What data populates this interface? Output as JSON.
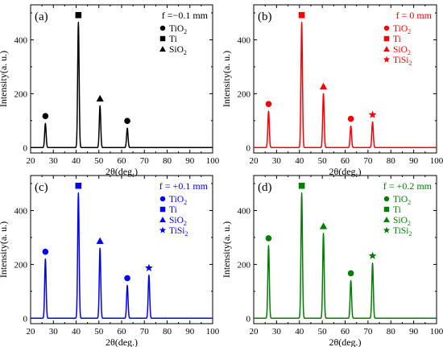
{
  "chart_data": [
    {
      "type": "line",
      "panel_label": "(a)",
      "annotation": "f =−0.1 mm",
      "color": "#000000",
      "xlabel": "2θ(deg.)",
      "ylabel": "Intensity(a. u.)",
      "xlim": [
        20,
        100
      ],
      "ylim": [
        -20,
        530
      ],
      "xticks": [
        "20",
        "30",
        "40",
        "50",
        "60",
        "70",
        "80",
        "90",
        "100"
      ],
      "yticks": [
        "0",
        "200",
        "400"
      ],
      "grid": false,
      "legend_position": "top-right",
      "legend": [
        {
          "marker": "circle",
          "label": "TiO",
          "sub": "2"
        },
        {
          "marker": "square",
          "label": "Ti",
          "sub": ""
        },
        {
          "marker": "triangle",
          "label": "SiO",
          "sub": "2"
        }
      ],
      "peaks": [
        {
          "x": 26.5,
          "y": 90,
          "marker": "circle"
        },
        {
          "x": 41.0,
          "y": 465,
          "marker": "square"
        },
        {
          "x": 50.5,
          "y": 155,
          "marker": "triangle"
        },
        {
          "x": 62.5,
          "y": 72,
          "marker": "circle"
        }
      ]
    },
    {
      "type": "line",
      "panel_label": "(b)",
      "annotation": "f = 0 mm",
      "color": "#ff0000",
      "xlabel": "2θ(deg.)",
      "ylabel": "Intensity(a. u.)",
      "xlim": [
        20,
        100
      ],
      "ylim": [
        -20,
        530
      ],
      "xticks": [
        "20",
        "30",
        "40",
        "50",
        "60",
        "70",
        "80",
        "90",
        "100"
      ],
      "yticks": [
        "0",
        "200",
        "400"
      ],
      "grid": false,
      "legend_position": "top-right",
      "legend": [
        {
          "marker": "circle",
          "label": "TiO",
          "sub": "2"
        },
        {
          "marker": "square",
          "label": "Ti",
          "sub": ""
        },
        {
          "marker": "triangle",
          "label": "SiO",
          "sub": "2"
        },
        {
          "marker": "star",
          "label": "TiSi",
          "sub": "2"
        }
      ],
      "peaks": [
        {
          "x": 26.5,
          "y": 135,
          "marker": "circle"
        },
        {
          "x": 41.0,
          "y": 465,
          "marker": "square"
        },
        {
          "x": 50.5,
          "y": 200,
          "marker": "triangle"
        },
        {
          "x": 62.5,
          "y": 80,
          "marker": "circle"
        },
        {
          "x": 72.0,
          "y": 95,
          "marker": "star"
        }
      ]
    },
    {
      "type": "line",
      "panel_label": "(c)",
      "annotation": "f = +0.1 mm",
      "color": "#0000ff",
      "xlabel": "2θ(deg.)",
      "ylabel": "Intensity(a. u.)",
      "xlim": [
        20,
        100
      ],
      "ylim": [
        -20,
        530
      ],
      "xticks": [
        "20",
        "30",
        "40",
        "50",
        "60",
        "70",
        "80",
        "90",
        "100"
      ],
      "yticks": [
        "0",
        "200",
        "400"
      ],
      "grid": false,
      "legend_position": "top-right",
      "legend": [
        {
          "marker": "circle",
          "label": "TiO",
          "sub": "2"
        },
        {
          "marker": "square",
          "label": "Ti",
          "sub": ""
        },
        {
          "marker": "triangle",
          "label": "SiO",
          "sub": "2"
        },
        {
          "marker": "star",
          "label": "TiSi",
          "sub": "2"
        }
      ],
      "peaks": [
        {
          "x": 26.5,
          "y": 220,
          "marker": "circle"
        },
        {
          "x": 41.0,
          "y": 465,
          "marker": "square"
        },
        {
          "x": 50.5,
          "y": 260,
          "marker": "triangle"
        },
        {
          "x": 62.5,
          "y": 122,
          "marker": "circle"
        },
        {
          "x": 72.0,
          "y": 160,
          "marker": "star"
        }
      ]
    },
    {
      "type": "line",
      "panel_label": "(d)",
      "annotation": "f = +0.2 mm",
      "color": "#008000",
      "xlabel": "2θ(deg.)",
      "ylabel": "Intensity(a. u.)",
      "xlim": [
        20,
        100
      ],
      "ylim": [
        -20,
        530
      ],
      "xticks": [
        "20",
        "30",
        "40",
        "50",
        "60",
        "70",
        "80",
        "90",
        "100"
      ],
      "yticks": [
        "0",
        "200",
        "400"
      ],
      "grid": false,
      "legend_position": "top-right",
      "legend": [
        {
          "marker": "circle",
          "label": "TiO",
          "sub": "2"
        },
        {
          "marker": "square",
          "label": "Ti",
          "sub": ""
        },
        {
          "marker": "triangle",
          "label": "SiO",
          "sub": "2"
        },
        {
          "marker": "star",
          "label": "TiSi",
          "sub": "2"
        }
      ],
      "peaks": [
        {
          "x": 26.5,
          "y": 270,
          "marker": "circle"
        },
        {
          "x": 41.0,
          "y": 465,
          "marker": "square"
        },
        {
          "x": 50.5,
          "y": 315,
          "marker": "triangle"
        },
        {
          "x": 62.5,
          "y": 140,
          "marker": "circle"
        },
        {
          "x": 72.0,
          "y": 205,
          "marker": "star"
        }
      ]
    }
  ]
}
